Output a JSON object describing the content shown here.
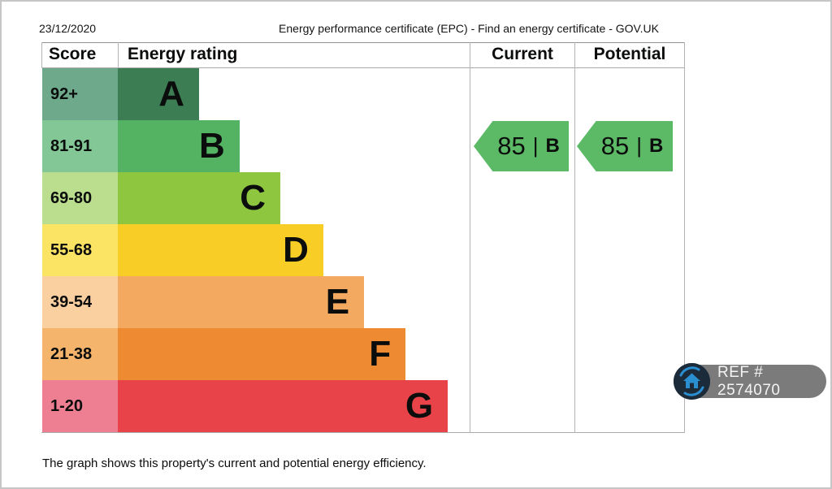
{
  "page": {
    "date": "23/12/2020",
    "title": "Energy performance certificate (EPC) - Find an energy certificate - GOV.UK",
    "footer": "The graph shows this property's current and potential energy efficiency."
  },
  "table_headers": {
    "score": "Score",
    "rating": "Energy rating",
    "current": "Current",
    "potential": "Potential"
  },
  "chart_data": {
    "type": "bar",
    "title": "Energy rating",
    "categories": [
      "A",
      "B",
      "C",
      "D",
      "E",
      "F",
      "G"
    ],
    "bands": [
      {
        "score": "92+",
        "letter": "A",
        "bar_color": "#3c7d54",
        "score_color": "#6fa98b",
        "width_pct": 23.1
      },
      {
        "score": "81-91",
        "letter": "B",
        "bar_color": "#53b363",
        "score_color": "#82c795",
        "width_pct": 34.6
      },
      {
        "score": "69-80",
        "letter": "C",
        "bar_color": "#8ec63f",
        "score_color": "#bade8e",
        "width_pct": 46.2
      },
      {
        "score": "55-68",
        "letter": "D",
        "bar_color": "#f8ce26",
        "score_color": "#fbe364",
        "width_pct": 58.4
      },
      {
        "score": "39-54",
        "letter": "E",
        "bar_color": "#f3a95f",
        "score_color": "#fbd0a0",
        "width_pct": 70.0
      },
      {
        "score": "21-38",
        "letter": "F",
        "bar_color": "#ee8a31",
        "score_color": "#f5b46c",
        "width_pct": 81.8
      },
      {
        "score": "1-20",
        "letter": "G",
        "bar_color": "#e84348",
        "score_color": "#ee7f93",
        "width_pct": 93.8
      }
    ],
    "current": {
      "score": "85",
      "separator": "|",
      "band": "B",
      "color": "#5cb966"
    },
    "potential": {
      "score": "85",
      "separator": "|",
      "band": "B",
      "color": "#5cb966"
    },
    "legend_position": "none",
    "grid": false
  },
  "badge": {
    "label": "REF # 2574070",
    "pill_color": "#7b7b7b",
    "icon_bg": "#1c2b3a",
    "icon_accent": "#2a8fd0"
  }
}
